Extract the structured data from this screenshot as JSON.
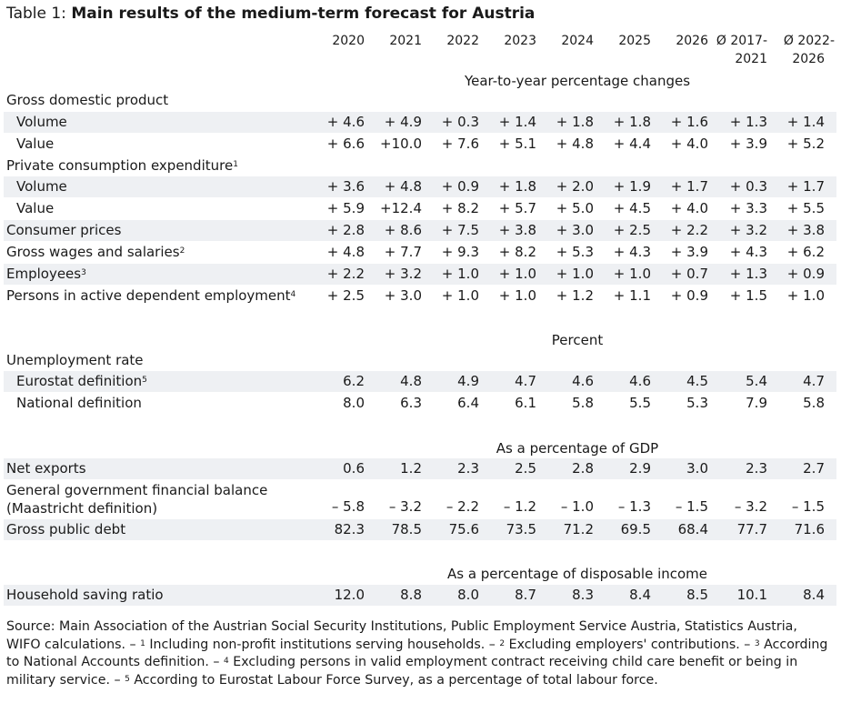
{
  "title": {
    "prefix": "Table 1: ",
    "main": "Main results of the medium-term forecast for Austria"
  },
  "columns": [
    {
      "line1": "2020",
      "line2": ""
    },
    {
      "line1": "2021",
      "line2": ""
    },
    {
      "line1": "2022",
      "line2": ""
    },
    {
      "line1": "2023",
      "line2": ""
    },
    {
      "line1": "2024",
      "line2": ""
    },
    {
      "line1": "2025",
      "line2": ""
    },
    {
      "line1": "2026",
      "line2": ""
    },
    {
      "line1": "Ø 2017-",
      "line2": "2021"
    },
    {
      "line1": "Ø 2022-",
      "line2": "2026"
    }
  ],
  "sections": {
    "s1": "Year-to-year percentage changes",
    "s2": "Percent",
    "s3": "As a percentage of GDP",
    "s4": "As a percentage of disposable income"
  },
  "groups": {
    "gdp": "Gross domestic product",
    "pce": "Private consumption expenditure",
    "pce_sup": "1",
    "unemp": "Unemployment rate"
  },
  "rows": {
    "gdp_volume": {
      "label": "Volume",
      "sup": "",
      "values": [
        "+ 4.6",
        "+ 4.9",
        "+ 0.3",
        "+ 1.4",
        "+ 1.8",
        "+ 1.8",
        "+ 1.6",
        "+ 1.3",
        "+ 1.4"
      ]
    },
    "gdp_value": {
      "label": "Value",
      "sup": "",
      "values": [
        "+ 6.6",
        "+10.0",
        "+ 7.6",
        "+ 5.1",
        "+ 4.8",
        "+ 4.4",
        "+ 4.0",
        "+ 3.9",
        "+ 5.2"
      ]
    },
    "pce_volume": {
      "label": "Volume",
      "sup": "",
      "values": [
        "+ 3.6",
        "+ 4.8",
        "+ 0.9",
        "+ 1.8",
        "+ 2.0",
        "+ 1.9",
        "+ 1.7",
        "+ 0.3",
        "+ 1.7"
      ]
    },
    "pce_value": {
      "label": "Value",
      "sup": "",
      "values": [
        "+ 5.9",
        "+12.4",
        "+ 8.2",
        "+ 5.7",
        "+ 5.0",
        "+ 4.5",
        "+ 4.0",
        "+ 3.3",
        "+ 5.5"
      ]
    },
    "cpi": {
      "label": "Consumer prices",
      "sup": "",
      "values": [
        "+ 2.8",
        "+ 8.6",
        "+ 7.5",
        "+ 3.8",
        "+ 3.0",
        "+ 2.5",
        "+ 2.2",
        "+ 3.2",
        "+ 3.8"
      ]
    },
    "wages": {
      "label": "Gross wages and salaries",
      "sup": "2",
      "values": [
        "+ 4.8",
        "+ 7.7",
        "+ 9.3",
        "+ 8.2",
        "+ 5.3",
        "+ 4.3",
        "+ 3.9",
        "+ 4.3",
        "+ 6.2"
      ]
    },
    "employees": {
      "label": "Employees",
      "sup": "3",
      "values": [
        "+ 2.2",
        "+ 3.2",
        "+ 1.0",
        "+ 1.0",
        "+ 1.0",
        "+ 1.0",
        "+ 0.7",
        "+ 1.3",
        "+ 0.9"
      ]
    },
    "persons": {
      "label": "Persons in active dependent employment",
      "sup": "4",
      "values": [
        "+ 2.5",
        "+ 3.0",
        "+ 1.0",
        "+ 1.0",
        "+ 1.2",
        "+ 1.1",
        "+ 0.9",
        "+ 1.5",
        "+ 1.0"
      ]
    },
    "eurostat": {
      "label": "Eurostat definition",
      "sup": "5",
      "values": [
        "6.2",
        "4.8",
        "4.9",
        "4.7",
        "4.6",
        "4.6",
        "4.5",
        "5.4",
        "4.7"
      ]
    },
    "national": {
      "label": "National definition",
      "sup": "",
      "values": [
        "8.0",
        "6.3",
        "6.4",
        "6.1",
        "5.8",
        "5.5",
        "5.3",
        "7.9",
        "5.8"
      ]
    },
    "netexports": {
      "label": "Net exports",
      "sup": "",
      "values": [
        "0.6",
        "1.2",
        "2.3",
        "2.5",
        "2.8",
        "2.9",
        "3.0",
        "2.3",
        "2.7"
      ]
    },
    "govbalance": {
      "label": "General government financial balance",
      "label2": "(Maastricht definition)",
      "sup": "",
      "values": [
        "– 5.8",
        "– 3.2",
        "– 2.2",
        "– 1.2",
        "– 1.0",
        "– 1.3",
        "– 1.5",
        "– 3.2",
        "– 1.5"
      ]
    },
    "debt": {
      "label": "Gross public debt",
      "sup": "",
      "values": [
        "82.3",
        "78.5",
        "75.6",
        "73.5",
        "71.2",
        "69.5",
        "68.4",
        "77.7",
        "71.6"
      ]
    },
    "saving": {
      "label": "Household saving ratio",
      "sup": "",
      "values": [
        "12.0",
        "8.8",
        "8.0",
        "8.7",
        "8.3",
        "8.4",
        "8.5",
        "10.1",
        "8.4"
      ]
    }
  },
  "footnote": {
    "p1": "Source: Main Association of the Austrian Social Security Institutions, Public Employment Service Austria, Statistics Austria, WIFO calculations. – ",
    "s1": "1",
    "p2": " Including non-profit institutions serving households. – ",
    "s2": "2",
    "p3": " Excluding employers' contributions. – ",
    "s3": "3",
    "p4": " According to National Accounts definition. – ",
    "s4": "4",
    "p5": " Excluding persons in valid employment contract receiving child care benefit or being in military service. – ",
    "s5": "5",
    "p6": " According to Eurostat Labour Force Survey, as a percentage of total labour force."
  }
}
